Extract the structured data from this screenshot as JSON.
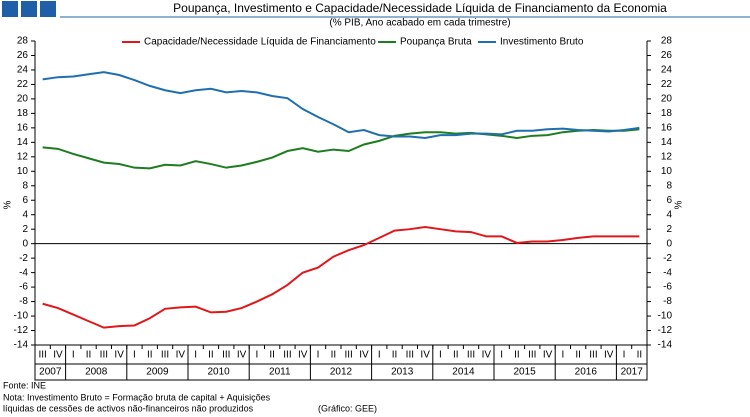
{
  "chart_data": {
    "type": "line",
    "title": "Poupança, Investimento e Capacidade/Necessidade Líquida de Financiamento da Economia",
    "subtitle": "(% PIB, Ano acabado em cada trimestre)",
    "ylabel": "%",
    "y2label": "%",
    "categories": [
      "III",
      "IV",
      "I",
      "II",
      "III",
      "IV",
      "I",
      "II",
      "III",
      "IV",
      "I",
      "II",
      "III",
      "IV",
      "I",
      "II",
      "III",
      "IV",
      "I",
      "II",
      "III",
      "IV",
      "I",
      "II",
      "III",
      "IV",
      "I",
      "II",
      "III",
      "IV",
      "I",
      "II",
      "III",
      "IV",
      "I",
      "II",
      "III",
      "IV",
      "I",
      "II"
    ],
    "years": [
      "2007",
      "2008",
      "2009",
      "2010",
      "2011",
      "2012",
      "2013",
      "2014",
      "2015",
      "2016",
      "2017"
    ],
    "ylim": [
      -14,
      28
    ],
    "yticks": [
      -14,
      -12,
      -10,
      -8,
      -6,
      -4,
      -2,
      0,
      2,
      4,
      6,
      8,
      10,
      12,
      14,
      16,
      18,
      20,
      22,
      24,
      26,
      28
    ],
    "y2lim": [
      -14,
      28
    ],
    "y2ticks": [
      -14,
      -12,
      -10,
      -8,
      -6,
      -4,
      -2,
      0,
      2,
      4,
      6,
      8,
      10,
      12,
      14,
      16,
      18,
      20,
      22,
      24,
      26,
      28
    ],
    "grid": false,
    "legend": "top",
    "series": [
      {
        "name": "Capacidade/Necessidade Líquida de Financiamento",
        "color": "#e0181b",
        "values": [
          -8.3,
          -8.9,
          -9.8,
          -10.7,
          -11.6,
          -11.4,
          -11.3,
          -10.3,
          -9.0,
          -8.8,
          -8.7,
          -9.5,
          -9.4,
          -8.9,
          -8.0,
          -7.0,
          -5.7,
          -4.0,
          -3.3,
          -1.8,
          -0.9,
          -0.2,
          0.8,
          1.8,
          2.0,
          2.3,
          2.0,
          1.7,
          1.6,
          1.0,
          1.0,
          0.1,
          0.3,
          0.3,
          0.5,
          0.8,
          1.0,
          1.0,
          1.0,
          1.0
        ]
      },
      {
        "name": "Poupança Bruta",
        "color": "#1e7d1e",
        "values": [
          13.3,
          13.1,
          12.4,
          11.8,
          11.2,
          11.0,
          10.5,
          10.4,
          10.9,
          10.8,
          11.4,
          11.0,
          10.5,
          10.8,
          11.3,
          11.9,
          12.8,
          13.2,
          12.7,
          13.0,
          12.8,
          13.7,
          14.2,
          14.9,
          15.2,
          15.4,
          15.4,
          15.2,
          15.3,
          15.1,
          14.9,
          14.6,
          14.9,
          15.0,
          15.4,
          15.6,
          15.7,
          15.6,
          15.6,
          15.8
        ]
      },
      {
        "name": "Investimento Bruto",
        "color": "#1f6fb0",
        "values": [
          22.7,
          23.0,
          23.1,
          23.4,
          23.7,
          23.3,
          22.6,
          21.8,
          21.2,
          20.8,
          21.2,
          21.4,
          20.9,
          21.1,
          20.9,
          20.4,
          20.1,
          18.6,
          17.5,
          16.5,
          15.4,
          15.7,
          15.0,
          14.8,
          14.8,
          14.6,
          15.0,
          15.0,
          15.2,
          15.2,
          15.1,
          15.6,
          15.6,
          15.8,
          15.9,
          15.7,
          15.6,
          15.5,
          15.7,
          16.0
        ]
      }
    ],
    "notes": [
      "Fonte: INE",
      "Nota: Investimento Bruto = Formação bruta de capital + Aquisições",
      "líquidas de cessões de activos não-financeiros não produzidos"
    ],
    "credit": "(Gráfico: GEE)"
  }
}
